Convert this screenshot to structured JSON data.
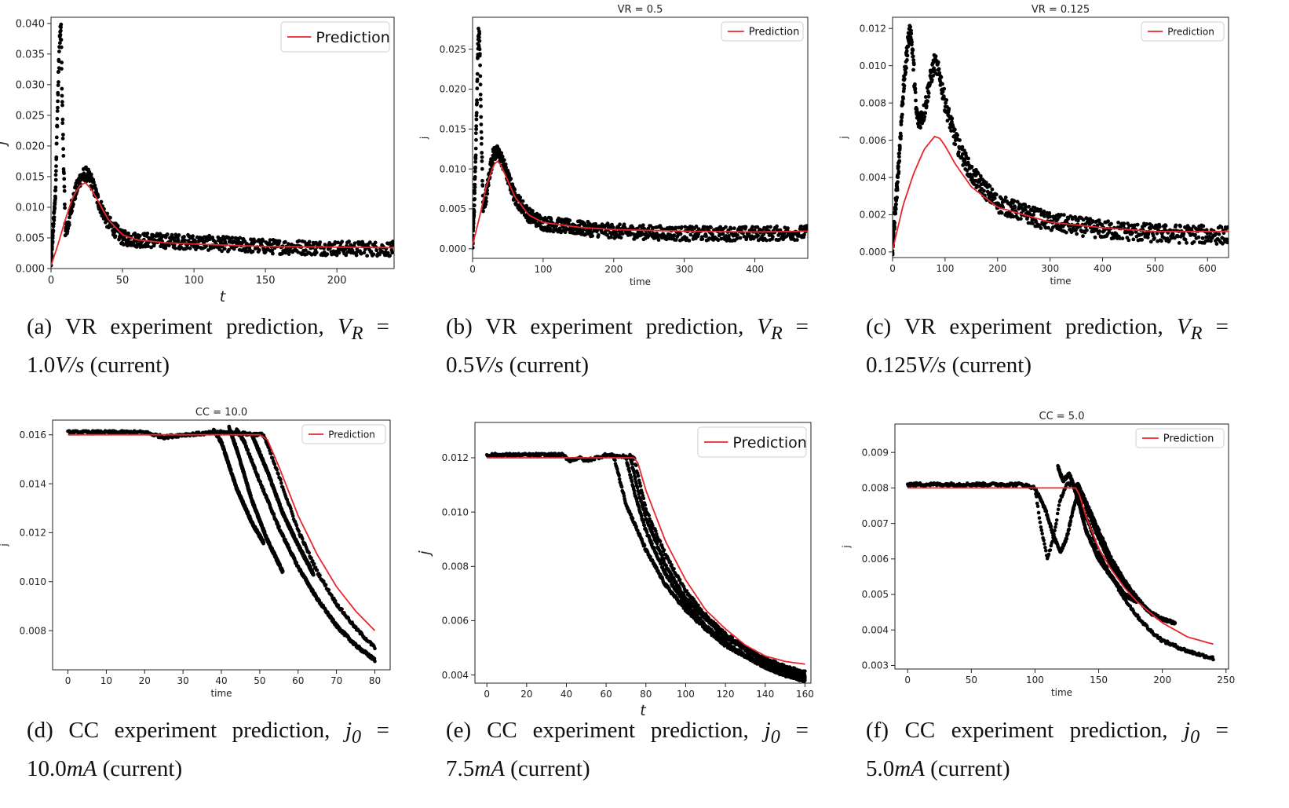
{
  "chart_data": [
    {
      "type": "scatter",
      "title": "",
      "xlabel": "t",
      "ylabel": "j",
      "xlim": [
        0,
        240
      ],
      "ylim": [
        0,
        0.041
      ],
      "xticks": [
        0,
        50,
        100,
        150,
        200
      ],
      "xtick_labels": [
        "0",
        "50",
        "100",
        "150",
        "200"
      ],
      "yticks": [
        0,
        0.005,
        0.01,
        0.015,
        0.02,
        0.025,
        0.03,
        0.035,
        0.04
      ],
      "ytick_labels": [
        "0.000",
        "0.005",
        "0.010",
        "0.015",
        "0.020",
        "0.025",
        "0.030",
        "0.035",
        "0.040"
      ],
      "legend": {
        "entries": [
          "Prediction"
        ],
        "placement": "top-right"
      },
      "series": [
        {
          "name": "Prediction",
          "kind": "line",
          "color": "#e8262b",
          "x": [
            0,
            5,
            10,
            15,
            20,
            24,
            28,
            33,
            40,
            50,
            60,
            80,
            100,
            150,
            200,
            240
          ],
          "y": [
            0.0005,
            0.004,
            0.008,
            0.0115,
            0.0135,
            0.014,
            0.013,
            0.011,
            0.008,
            0.0055,
            0.0047,
            0.0042,
            0.004,
            0.0036,
            0.0035,
            0.0034
          ]
        },
        {
          "kind": "scatter-band",
          "color": "#000000",
          "x": [
            0,
            3,
            5,
            6,
            7,
            8,
            10,
            12,
            15,
            20,
            24,
            28,
            33,
            40,
            50,
            60,
            80,
            100,
            150,
            200,
            240
          ],
          "y": [
            0.001,
            0.012,
            0.03,
            0.037,
            0.039,
            0.025,
            0.006,
            0.007,
            0.011,
            0.0145,
            0.0155,
            0.0145,
            0.011,
            0.0075,
            0.005,
            0.0047,
            0.0045,
            0.0043,
            0.0036,
            0.0033,
            0.0032
          ],
          "spread": 0.0012
        }
      ]
    },
    {
      "type": "scatter",
      "title": "VR = 0.5",
      "xlabel": "time",
      "ylabel": "j",
      "xlim": [
        0,
        475
      ],
      "ylim": [
        -0.0012,
        0.029
      ],
      "xticks": [
        0,
        100,
        200,
        300,
        400
      ],
      "xtick_labels": [
        "0",
        "100",
        "200",
        "300",
        "400"
      ],
      "yticks": [
        0,
        0.005,
        0.01,
        0.015,
        0.02,
        0.025
      ],
      "ytick_labels": [
        "0.000",
        "0.005",
        "0.010",
        "0.015",
        "0.020",
        "0.025"
      ],
      "legend": {
        "entries": [
          "Prediction"
        ],
        "placement": "top-right"
      },
      "series": [
        {
          "name": "Prediction",
          "kind": "line",
          "color": "#e8262b",
          "x": [
            0,
            10,
            20,
            30,
            35,
            40,
            50,
            60,
            80,
            100,
            150,
            200,
            300,
            400,
            475
          ],
          "y": [
            0.0005,
            0.004,
            0.008,
            0.0105,
            0.011,
            0.0105,
            0.0085,
            0.0065,
            0.0042,
            0.0033,
            0.0027,
            0.0024,
            0.0022,
            0.0021,
            0.0022
          ]
        },
        {
          "kind": "scatter-band",
          "color": "#000000",
          "x": [
            0,
            3,
            6,
            8,
            10,
            12,
            15,
            20,
            25,
            30,
            35,
            40,
            50,
            60,
            80,
            100,
            150,
            200,
            300,
            400,
            475
          ],
          "y": [
            0.0005,
            0.007,
            0.018,
            0.027,
            0.026,
            0.016,
            0.005,
            0.007,
            0.01,
            0.012,
            0.012,
            0.0115,
            0.009,
            0.0065,
            0.0042,
            0.0032,
            0.0026,
            0.0022,
            0.0019,
            0.0019,
            0.002
          ],
          "spread": 0.0009
        }
      ]
    },
    {
      "type": "scatter",
      "title": "VR = 0.125",
      "xlabel": "time",
      "ylabel": "j",
      "xlim": [
        0,
        640
      ],
      "ylim": [
        -0.0003,
        0.0126
      ],
      "xticks": [
        0,
        100,
        200,
        300,
        400,
        500,
        600
      ],
      "xtick_labels": [
        "0",
        "100",
        "200",
        "300",
        "400",
        "500",
        "600"
      ],
      "yticks": [
        0,
        0.002,
        0.004,
        0.006,
        0.008,
        0.01,
        0.012
      ],
      "ytick_labels": [
        "0.000",
        "0.002",
        "0.004",
        "0.006",
        "0.008",
        "0.010",
        "0.012"
      ],
      "legend": {
        "entries": [
          "Prediction"
        ],
        "placement": "top-right"
      },
      "series": [
        {
          "name": "Prediction",
          "kind": "line",
          "color": "#e8262b",
          "x": [
            0,
            20,
            40,
            60,
            80,
            90,
            100,
            120,
            150,
            200,
            300,
            400,
            500,
            640
          ],
          "y": [
            0.0001,
            0.0025,
            0.0042,
            0.0055,
            0.0062,
            0.0061,
            0.0057,
            0.0047,
            0.0035,
            0.0024,
            0.0016,
            0.0013,
            0.0011,
            0.0011
          ]
        },
        {
          "kind": "scatter-band",
          "color": "#000000",
          "x": [
            0,
            10,
            20,
            30,
            35,
            40,
            45,
            50,
            60,
            70,
            80,
            90,
            100,
            120,
            150,
            200,
            300,
            400,
            500,
            640
          ],
          "y": [
            0.0003,
            0.004,
            0.0085,
            0.0115,
            0.0118,
            0.01,
            0.0075,
            0.007,
            0.0075,
            0.009,
            0.0102,
            0.0095,
            0.008,
            0.006,
            0.0042,
            0.0026,
            0.0016,
            0.0012,
            0.001,
            0.0009
          ],
          "spread": 0.0005
        }
      ]
    },
    {
      "type": "scatter",
      "title": "CC = 10.0",
      "xlabel": "time",
      "ylabel": "j",
      "xlim": [
        -4,
        84
      ],
      "ylim": [
        0.0064,
        0.0166
      ],
      "xticks": [
        0,
        10,
        20,
        30,
        40,
        50,
        60,
        70,
        80
      ],
      "xtick_labels": [
        "0",
        "10",
        "20",
        "30",
        "40",
        "50",
        "60",
        "70",
        "80"
      ],
      "yticks": [
        0.008,
        0.01,
        0.012,
        0.014,
        0.016
      ],
      "ytick_labels": [
        "0.008",
        "0.010",
        "0.012",
        "0.014",
        "0.016"
      ],
      "legend": {
        "entries": [
          "Prediction"
        ],
        "placement": "top-right"
      },
      "series": [
        {
          "name": "Prediction",
          "kind": "line",
          "color": "#e8262b",
          "x": [
            0,
            50,
            52,
            55,
            60,
            65,
            70,
            75,
            80
          ],
          "y": [
            0.016,
            0.016,
            0.0158,
            0.0147,
            0.0127,
            0.0111,
            0.0098,
            0.0088,
            0.008
          ]
        },
        {
          "kind": "scatter-curve",
          "color": "#000000",
          "x": [
            0,
            20,
            25,
            30,
            40,
            51,
            55,
            60,
            65,
            70,
            75,
            80
          ],
          "y": [
            0.0161,
            0.0161,
            0.0159,
            0.016,
            0.0161,
            0.016,
            0.0143,
            0.0121,
            0.0104,
            0.0091,
            0.0081,
            0.0073
          ]
        },
        {
          "kind": "scatter-curve",
          "color": "#000000",
          "x": [
            44,
            46,
            50,
            55,
            60,
            65,
            70,
            75,
            80
          ],
          "y": [
            0.0162,
            0.0157,
            0.0141,
            0.0122,
            0.0106,
            0.0093,
            0.0082,
            0.0074,
            0.0068
          ]
        },
        {
          "kind": "scatter-curve",
          "color": "#000000",
          "x": [
            42,
            44,
            48,
            52,
            56
          ],
          "y": [
            0.0163,
            0.0154,
            0.0133,
            0.0117,
            0.0104
          ]
        },
        {
          "kind": "scatter-curve",
          "color": "#000000",
          "x": [
            38,
            40,
            44,
            48,
            51
          ],
          "y": [
            0.0162,
            0.0157,
            0.0138,
            0.0124,
            0.0116
          ]
        },
        {
          "kind": "scatter-curve",
          "color": "#000000",
          "x": [
            48,
            52,
            56,
            60,
            64
          ],
          "y": [
            0.016,
            0.0145,
            0.0128,
            0.0115,
            0.0103
          ]
        }
      ]
    },
    {
      "type": "scatter",
      "title": "",
      "xlabel": "t",
      "ylabel": "j",
      "xlim": [
        -6,
        163
      ],
      "ylim": [
        0.0037,
        0.0133
      ],
      "xticks": [
        0,
        20,
        40,
        60,
        80,
        100,
        120,
        140,
        160
      ],
      "xtick_labels": [
        "0",
        "20",
        "40",
        "60",
        "80",
        "100",
        "120",
        "140",
        "160"
      ],
      "yticks": [
        0.004,
        0.006,
        0.008,
        0.01,
        0.012
      ],
      "ytick_labels": [
        "0.004",
        "0.006",
        "0.008",
        "0.010",
        "0.012"
      ],
      "legend": {
        "entries": [
          "Prediction"
        ],
        "placement": "top-right"
      },
      "series": [
        {
          "name": "Prediction",
          "kind": "line",
          "color": "#e8262b",
          "x": [
            0,
            74,
            76,
            80,
            90,
            100,
            110,
            120,
            130,
            140,
            150,
            160
          ],
          "y": [
            0.012,
            0.012,
            0.0118,
            0.0108,
            0.0089,
            0.0075,
            0.0064,
            0.0057,
            0.0051,
            0.0047,
            0.0045,
            0.0044
          ]
        },
        {
          "kind": "scatter-curve",
          "color": "#000000",
          "x": [
            0,
            38,
            42,
            46,
            50,
            60,
            74,
            80,
            90,
            100,
            110,
            120,
            130,
            140,
            150,
            160
          ],
          "y": [
            0.0121,
            0.0121,
            0.0119,
            0.012,
            0.0119,
            0.0121,
            0.012,
            0.0101,
            0.0084,
            0.0071,
            0.0062,
            0.0055,
            0.005,
            0.0046,
            0.0043,
            0.0041
          ]
        },
        {
          "kind": "scatter-curve",
          "color": "#000000",
          "x": [
            70,
            75,
            80,
            90,
            100,
            110,
            120,
            130,
            140,
            150,
            160
          ],
          "y": [
            0.012,
            0.0105,
            0.0093,
            0.0077,
            0.0066,
            0.0058,
            0.0052,
            0.0047,
            0.0044,
            0.0041,
            0.0039
          ]
        },
        {
          "kind": "scatter-curve",
          "color": "#000000",
          "x": [
            64,
            70,
            80,
            90,
            100,
            110,
            120,
            130,
            140,
            150,
            160
          ],
          "y": [
            0.012,
            0.0103,
            0.0086,
            0.0073,
            0.0064,
            0.0057,
            0.0051,
            0.0047,
            0.0043,
            0.004,
            0.0038
          ]
        },
        {
          "kind": "scatter-curve",
          "color": "#000000",
          "x": [
            72,
            76,
            80,
            90,
            100,
            120,
            140,
            160
          ],
          "y": [
            0.0121,
            0.0108,
            0.0098,
            0.008,
            0.0068,
            0.0054,
            0.0045,
            0.004
          ]
        }
      ]
    },
    {
      "type": "scatter",
      "title": "CC = 5.0",
      "xlabel": "time",
      "ylabel": "j",
      "xlim": [
        -10,
        252
      ],
      "ylim": [
        0.0029,
        0.0098
      ],
      "xticks": [
        0,
        50,
        100,
        150,
        200,
        250
      ],
      "xtick_labels": [
        "0",
        "50",
        "100",
        "150",
        "200",
        "250"
      ],
      "yticks": [
        0.003,
        0.004,
        0.005,
        0.006,
        0.007,
        0.008,
        0.009
      ],
      "ytick_labels": [
        "0.003",
        "0.004",
        "0.005",
        "0.006",
        "0.007",
        "0.008",
        "0.009"
      ],
      "legend": {
        "entries": [
          "Prediction"
        ],
        "placement": "top-right"
      },
      "series": [
        {
          "name": "Prediction",
          "kind": "line",
          "color": "#e8262b",
          "x": [
            0,
            132,
            135,
            140,
            150,
            160,
            170,
            180,
            190,
            200,
            210,
            220,
            240
          ],
          "y": [
            0.008,
            0.008,
            0.0078,
            0.0072,
            0.0063,
            0.0057,
            0.0052,
            0.0048,
            0.0045,
            0.0042,
            0.004,
            0.0038,
            0.0036
          ]
        },
        {
          "kind": "scatter-curve",
          "color": "#000000",
          "x": [
            0,
            90,
            100,
            105,
            110,
            115,
            120,
            125,
            130,
            140,
            150,
            160,
            170,
            180,
            190,
            200,
            220,
            240
          ],
          "y": [
            0.0081,
            0.0081,
            0.008,
            0.0068,
            0.006,
            0.0067,
            0.0077,
            0.0081,
            0.0081,
            0.0072,
            0.0062,
            0.0055,
            0.0049,
            0.0044,
            0.004,
            0.0037,
            0.0034,
            0.0032
          ]
        },
        {
          "kind": "scatter-curve",
          "color": "#000000",
          "x": [
            100,
            108,
            115,
            120,
            125,
            130,
            135,
            140,
            150,
            160,
            170,
            180,
            190,
            200,
            210
          ],
          "y": [
            0.008,
            0.0074,
            0.0066,
            0.0062,
            0.0066,
            0.0074,
            0.008,
            0.0076,
            0.0068,
            0.006,
            0.0054,
            0.0049,
            0.0045,
            0.0043,
            0.0042
          ]
        },
        {
          "kind": "scatter-curve",
          "color": "#000000",
          "x": [
            130,
            135,
            140,
            150,
            160,
            170,
            180
          ],
          "y": [
            0.0081,
            0.0075,
            0.0068,
            0.006,
            0.0055,
            0.005,
            0.0048
          ]
        },
        {
          "kind": "scatter-curve",
          "color": "#000000",
          "x": [
            118,
            122,
            127,
            131,
            134,
            140,
            150,
            160,
            170,
            180
          ],
          "y": [
            0.0086,
            0.0082,
            0.0084,
            0.008,
            0.0081,
            0.0075,
            0.0066,
            0.0058,
            0.0053,
            0.0049
          ]
        }
      ]
    }
  ],
  "captions": [
    {
      "label": "(a)",
      "text": "VR experiment prediction,",
      "symbol": "V",
      "sub": "R",
      "eq": " = ",
      "value": "1.0",
      "unit": "V/s",
      "suffix": "(current)"
    },
    {
      "label": "(b)",
      "text": "VR experiment prediction,",
      "symbol": "V",
      "sub": "R",
      "eq": " = ",
      "value": "0.5",
      "unit": "V/s",
      "suffix": "(current)"
    },
    {
      "label": "(c)",
      "text": "VR experiment prediction,",
      "symbol": "V",
      "sub": "R",
      "eq": " = ",
      "value": "0.125",
      "unit": "V/s",
      "suffix": "(current)"
    },
    {
      "label": "(d)",
      "text": "CC experiment prediction,",
      "symbol": "j",
      "sub": "0",
      "eq": " = ",
      "value": "10.0",
      "unit": "mA",
      "suffix": "(current)"
    },
    {
      "label": "(e)",
      "text": "CC experiment prediction,",
      "symbol": "j",
      "sub": "0",
      "eq": " = ",
      "value": "7.5",
      "unit": "mA",
      "suffix": "(current)"
    },
    {
      "label": "(f)",
      "text": "CC experiment prediction,",
      "symbol": "j",
      "sub": "0",
      "eq": " = ",
      "value": "5.0",
      "unit": "mA",
      "suffix": "(current)"
    }
  ]
}
